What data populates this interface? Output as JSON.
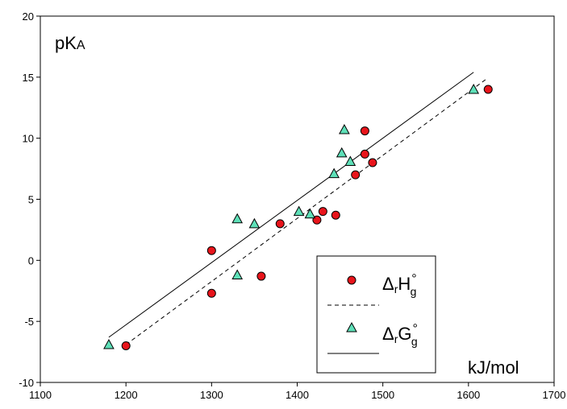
{
  "chart_data": {
    "type": "scatter",
    "ylabel_main": "pK",
    "ylabel_sub": "A",
    "xlabel": "kJ/mol",
    "xlim": [
      1100,
      1700
    ],
    "ylim": [
      -10,
      20
    ],
    "x_ticks": [
      1100,
      1200,
      1300,
      1400,
      1500,
      1600,
      1700
    ],
    "y_ticks": [
      -10,
      -5,
      0,
      5,
      10,
      15,
      20
    ],
    "x_tick_labels": [
      "1100",
      "1200",
      "1300",
      "1400",
      "1500",
      "1600",
      "1700"
    ],
    "y_tick_labels": [
      "-10",
      "-5",
      "0",
      "5",
      "10",
      "15",
      "20"
    ],
    "grid": false,
    "legend_placement": "bottom-right",
    "series": [
      {
        "marker": "circle",
        "color": "#e8141b",
        "legend_main": "Δ",
        "legend_sub": "r",
        "legend_sym": "H",
        "legend_sup": "°",
        "legend_sub2": "g",
        "points": [
          {
            "x": 1200,
            "y": -7.0
          },
          {
            "x": 1300,
            "y": 0.8
          },
          {
            "x": 1300,
            "y": -2.7
          },
          {
            "x": 1358,
            "y": -1.3
          },
          {
            "x": 1380,
            "y": 3.0
          },
          {
            "x": 1423,
            "y": 3.3
          },
          {
            "x": 1430,
            "y": 4.0
          },
          {
            "x": 1445,
            "y": 3.7
          },
          {
            "x": 1468,
            "y": 7.0
          },
          {
            "x": 1479,
            "y": 8.7
          },
          {
            "x": 1479,
            "y": 10.6
          },
          {
            "x": 1488,
            "y": 8.0
          },
          {
            "x": 1623,
            "y": 14.0
          }
        ],
        "fit": {
          "line_style": "dashed",
          "x": [
            1200,
            1620
          ],
          "y": [
            -6.9,
            14.8
          ]
        }
      },
      {
        "marker": "triangle",
        "color": "#5ee0b8",
        "legend_main": "Δ",
        "legend_sub": "r",
        "legend_sym": "G",
        "legend_sup": "°",
        "legend_sub2": "g",
        "points": [
          {
            "x": 1180,
            "y": -6.9
          },
          {
            "x": 1330,
            "y": 3.4
          },
          {
            "x": 1330,
            "y": -1.2
          },
          {
            "x": 1350,
            "y": 3.0
          },
          {
            "x": 1402,
            "y": 4.0
          },
          {
            "x": 1415,
            "y": 3.8
          },
          {
            "x": 1443,
            "y": 7.1
          },
          {
            "x": 1452,
            "y": 8.8
          },
          {
            "x": 1455,
            "y": 10.7
          },
          {
            "x": 1462,
            "y": 8.1
          },
          {
            "x": 1606,
            "y": 14.0
          }
        ],
        "fit": {
          "line_style": "solid",
          "x": [
            1180,
            1606
          ],
          "y": [
            -6.3,
            15.4
          ]
        }
      }
    ]
  }
}
